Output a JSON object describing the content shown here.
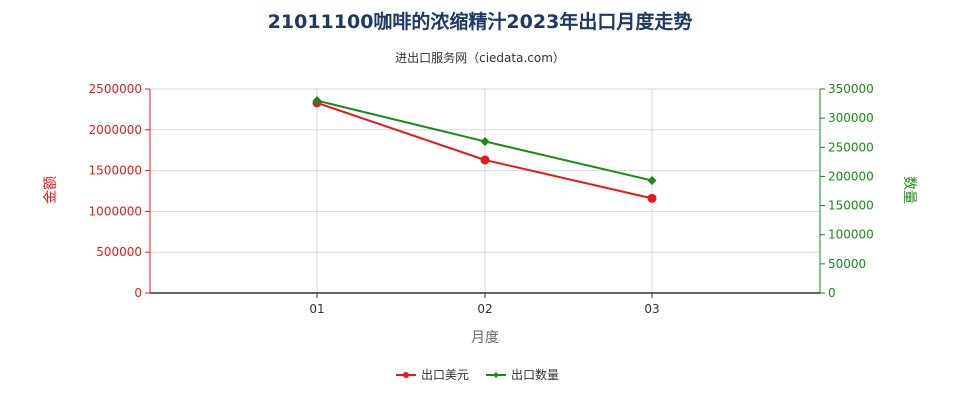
{
  "chart_data": {
    "type": "line",
    "title": "21011100咖啡的浓缩精汁2023年出口月度走势",
    "subtitle": "进出口服务网（ciedata.com）",
    "xlabel": "月度",
    "ylabel_left": "金额",
    "ylabel_right": "数量",
    "categories": [
      "01",
      "02",
      "03"
    ],
    "left_axis": {
      "min": 0,
      "max": 2500000,
      "ticks": [
        "0",
        "500000",
        "1000000",
        "1500000",
        "2000000",
        "2500000"
      ],
      "color": "#e41a1c"
    },
    "right_axis": {
      "min": 0,
      "max": 350000,
      "ticks": [
        "0",
        "50000",
        "100000",
        "150000",
        "200000",
        "250000",
        "300000",
        "350000"
      ],
      "color": "#1a8a1a"
    },
    "series": [
      {
        "name": "出口美元",
        "axis": "left",
        "color": "#e41a1c",
        "marker": "circle",
        "values": [
          2330000,
          1630000,
          1160000
        ]
      },
      {
        "name": "出口数量",
        "axis": "right",
        "color": "#1a8a1a",
        "marker": "diamond",
        "values": [
          330000,
          260000,
          193000
        ]
      }
    ],
    "grid": true,
    "legend_position": "bottom-center"
  }
}
